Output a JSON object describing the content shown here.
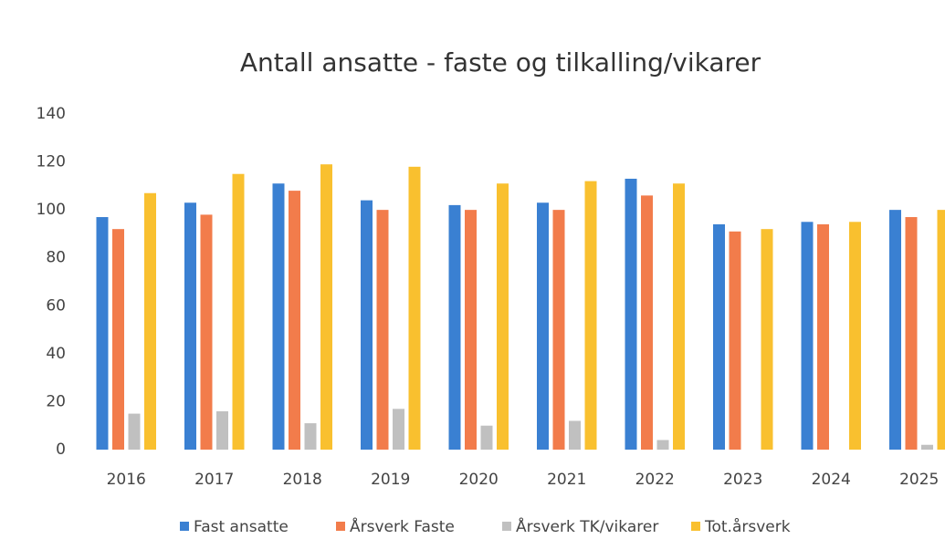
{
  "chart_data": {
    "type": "bar",
    "title": "Antall ansatte - faste og tilkalling/vikarer",
    "categories": [
      "2016",
      "2017",
      "2018",
      "2019",
      "2020",
      "2021",
      "2022",
      "2023",
      "2024",
      "2025"
    ],
    "series": [
      {
        "name": "Fast ansatte",
        "color": "#3a80d2",
        "values": [
          97,
          103,
          111,
          104,
          102,
          103,
          113,
          94,
          95,
          100
        ]
      },
      {
        "name": "Årsverk Faste",
        "color": "#f27c4b",
        "values": [
          92,
          98,
          108,
          100,
          100,
          100,
          106,
          91,
          94,
          97
        ]
      },
      {
        "name": "Årsverk TK/vikarer",
        "color": "#c0c0c0",
        "values": [
          15,
          16,
          11,
          17,
          10,
          12,
          4,
          0,
          0,
          2
        ]
      },
      {
        "name": "Tot.årsverk",
        "color": "#f9c02f",
        "values": [
          107,
          115,
          119,
          118,
          111,
          112,
          111,
          92,
          95,
          100
        ]
      }
    ],
    "ylim": [
      0,
      140
    ],
    "yticks": [
      0,
      20,
      40,
      60,
      80,
      100,
      120,
      140
    ],
    "grid": false
  }
}
